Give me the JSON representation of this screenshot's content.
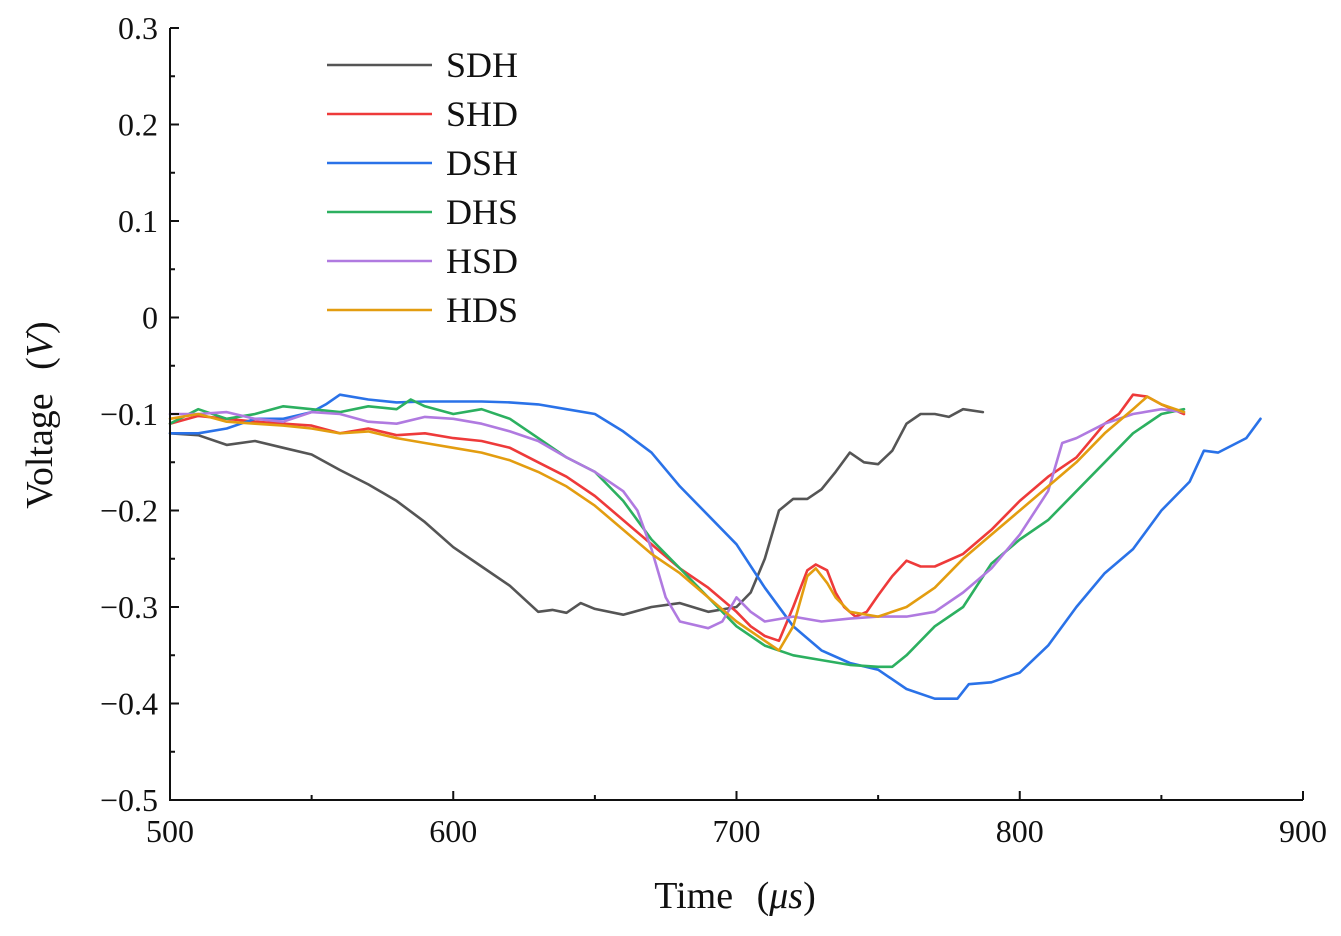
{
  "chart_data": {
    "type": "line",
    "title": "",
    "xlabel": "Time",
    "xlabel_unit": "μs",
    "ylabel": "Voltage",
    "ylabel_unit": "V",
    "xlim": [
      500,
      900
    ],
    "ylim": [
      -0.5,
      0.3
    ],
    "xticks": [
      500,
      600,
      700,
      800,
      900
    ],
    "xtick_labels": [
      "500",
      "600",
      "700",
      "800",
      "900"
    ],
    "yticks": [
      -0.5,
      -0.4,
      -0.3,
      -0.2,
      -0.1,
      0,
      0.1,
      0.2,
      0.3
    ],
    "ytick_labels": [
      "−0.5",
      "−0.4",
      "−0.3",
      "−0.2",
      "−0.1",
      "0",
      "0.1",
      "0.2",
      "0.3"
    ],
    "grid": false,
    "legend_position": "top-left",
    "series": [
      {
        "name": "SDH",
        "color": "#555555",
        "x": [
          500,
          510,
          520,
          530,
          540,
          550,
          560,
          570,
          580,
          590,
          600,
          610,
          620,
          630,
          635,
          640,
          645,
          650,
          660,
          670,
          680,
          690,
          700,
          705,
          710,
          715,
          720,
          725,
          730,
          735,
          740,
          745,
          750,
          755,
          760,
          765,
          770,
          775,
          780,
          787
        ],
        "y": [
          -0.12,
          -0.122,
          -0.132,
          -0.128,
          -0.135,
          -0.142,
          -0.158,
          -0.173,
          -0.19,
          -0.212,
          -0.238,
          -0.258,
          -0.278,
          -0.305,
          -0.303,
          -0.306,
          -0.296,
          -0.302,
          -0.308,
          -0.3,
          -0.296,
          -0.305,
          -0.3,
          -0.285,
          -0.25,
          -0.2,
          -0.188,
          -0.188,
          -0.178,
          -0.16,
          -0.14,
          -0.15,
          -0.152,
          -0.138,
          -0.11,
          -0.1,
          -0.1,
          -0.103,
          -0.095,
          -0.098
        ]
      },
      {
        "name": "SHD",
        "color": "#ee3a3a",
        "x": [
          500,
          510,
          520,
          530,
          540,
          550,
          560,
          570,
          580,
          590,
          600,
          610,
          620,
          630,
          640,
          650,
          660,
          670,
          680,
          690,
          700,
          705,
          710,
          715,
          720,
          725,
          728,
          732,
          735,
          738,
          742,
          746,
          750,
          755,
          760,
          765,
          770,
          780,
          790,
          800,
          810,
          820,
          830,
          835,
          840,
          845,
          850,
          858
        ],
        "y": [
          -0.11,
          -0.102,
          -0.105,
          -0.108,
          -0.11,
          -0.112,
          -0.12,
          -0.115,
          -0.122,
          -0.12,
          -0.125,
          -0.128,
          -0.135,
          -0.15,
          -0.165,
          -0.185,
          -0.21,
          -0.235,
          -0.26,
          -0.28,
          -0.305,
          -0.32,
          -0.33,
          -0.335,
          -0.3,
          -0.262,
          -0.256,
          -0.262,
          -0.285,
          -0.3,
          -0.31,
          -0.305,
          -0.288,
          -0.268,
          -0.252,
          -0.258,
          -0.258,
          -0.245,
          -0.22,
          -0.19,
          -0.165,
          -0.145,
          -0.11,
          -0.1,
          -0.08,
          -0.082,
          -0.09,
          -0.1
        ]
      },
      {
        "name": "DSH",
        "color": "#2a72e8",
        "x": [
          500,
          510,
          520,
          530,
          540,
          550,
          555,
          560,
          570,
          580,
          590,
          600,
          610,
          620,
          630,
          640,
          650,
          660,
          670,
          680,
          690,
          700,
          710,
          720,
          730,
          740,
          750,
          760,
          770,
          778,
          782,
          790,
          800,
          810,
          820,
          830,
          840,
          850,
          860,
          865,
          870,
          880,
          885
        ],
        "y": [
          -0.12,
          -0.12,
          -0.115,
          -0.105,
          -0.105,
          -0.098,
          -0.09,
          -0.08,
          -0.085,
          -0.088,
          -0.087,
          -0.087,
          -0.087,
          -0.088,
          -0.09,
          -0.095,
          -0.1,
          -0.118,
          -0.14,
          -0.175,
          -0.205,
          -0.235,
          -0.28,
          -0.32,
          -0.345,
          -0.358,
          -0.365,
          -0.385,
          -0.395,
          -0.395,
          -0.38,
          -0.378,
          -0.368,
          -0.34,
          -0.3,
          -0.265,
          -0.24,
          -0.2,
          -0.17,
          -0.138,
          -0.14,
          -0.125,
          -0.105
        ]
      },
      {
        "name": "DHS",
        "color": "#2cb060",
        "x": [
          500,
          510,
          520,
          530,
          540,
          550,
          560,
          570,
          580,
          585,
          590,
          600,
          610,
          620,
          630,
          640,
          650,
          660,
          670,
          680,
          690,
          700,
          710,
          720,
          730,
          740,
          750,
          755,
          760,
          770,
          780,
          790,
          800,
          810,
          820,
          830,
          840,
          850,
          858
        ],
        "y": [
          -0.11,
          -0.095,
          -0.105,
          -0.1,
          -0.092,
          -0.095,
          -0.098,
          -0.092,
          -0.095,
          -0.085,
          -0.092,
          -0.1,
          -0.095,
          -0.105,
          -0.125,
          -0.145,
          -0.16,
          -0.19,
          -0.23,
          -0.26,
          -0.29,
          -0.32,
          -0.34,
          -0.35,
          -0.355,
          -0.36,
          -0.362,
          -0.362,
          -0.35,
          -0.32,
          -0.3,
          -0.255,
          -0.23,
          -0.21,
          -0.18,
          -0.15,
          -0.12,
          -0.1,
          -0.095
        ]
      },
      {
        "name": "HSD",
        "color": "#b07ae0",
        "x": [
          500,
          510,
          520,
          530,
          540,
          550,
          560,
          570,
          580,
          590,
          600,
          610,
          620,
          630,
          640,
          650,
          660,
          665,
          670,
          675,
          680,
          690,
          695,
          700,
          705,
          710,
          720,
          730,
          740,
          750,
          760,
          770,
          780,
          790,
          800,
          810,
          815,
          820,
          830,
          840,
          850,
          858
        ],
        "y": [
          -0.1,
          -0.1,
          -0.098,
          -0.105,
          -0.108,
          -0.098,
          -0.1,
          -0.108,
          -0.11,
          -0.103,
          -0.105,
          -0.11,
          -0.118,
          -0.128,
          -0.145,
          -0.16,
          -0.18,
          -0.2,
          -0.24,
          -0.29,
          -0.315,
          -0.322,
          -0.315,
          -0.29,
          -0.305,
          -0.315,
          -0.31,
          -0.315,
          -0.312,
          -0.31,
          -0.31,
          -0.305,
          -0.285,
          -0.26,
          -0.225,
          -0.18,
          -0.13,
          -0.125,
          -0.11,
          -0.1,
          -0.095,
          -0.098
        ]
      },
      {
        "name": "HDS",
        "color": "#e39d10",
        "x": [
          500,
          510,
          520,
          530,
          540,
          550,
          560,
          570,
          580,
          590,
          600,
          610,
          620,
          630,
          640,
          650,
          660,
          670,
          680,
          690,
          700,
          710,
          715,
          720,
          725,
          728,
          732,
          735,
          740,
          750,
          760,
          770,
          780,
          790,
          800,
          810,
          820,
          830,
          840,
          845,
          850,
          858
        ],
        "y": [
          -0.105,
          -0.1,
          -0.108,
          -0.11,
          -0.112,
          -0.115,
          -0.12,
          -0.118,
          -0.125,
          -0.13,
          -0.135,
          -0.14,
          -0.148,
          -0.16,
          -0.175,
          -0.195,
          -0.22,
          -0.245,
          -0.265,
          -0.29,
          -0.315,
          -0.335,
          -0.345,
          -0.32,
          -0.268,
          -0.26,
          -0.275,
          -0.29,
          -0.305,
          -0.31,
          -0.3,
          -0.28,
          -0.25,
          -0.225,
          -0.2,
          -0.175,
          -0.15,
          -0.12,
          -0.095,
          -0.082,
          -0.09,
          -0.098
        ]
      }
    ]
  }
}
